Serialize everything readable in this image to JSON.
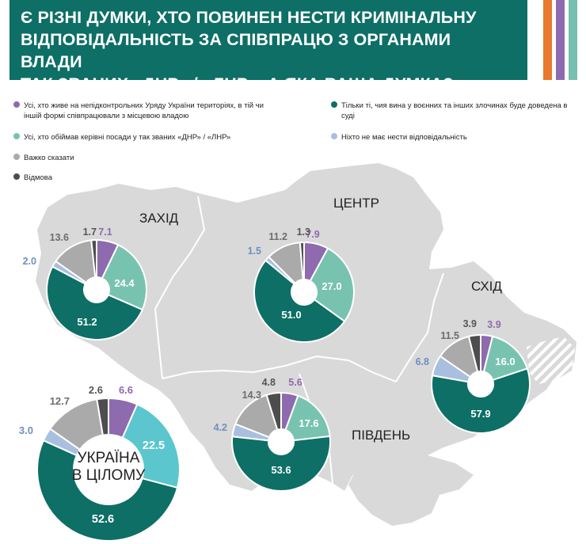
{
  "header": {
    "title_lines": [
      "Є РІЗНІ ДУМКИ, ХТО ПОВИНЕН НЕСТИ КРИМІНАЛЬНУ",
      "ВІДПОВІДАЛЬНІСТЬ ЗА СПІВПРАЦЮ З ОРГАНАМИ ВЛАДИ",
      "ТАК ЗВАНИХ «ДНР» / «ЛНР». А ЯКА ВАША ДУМКА?"
    ],
    "header_color": "#0d6f66",
    "stripe_colors": [
      "#e8792f",
      "#8e6aae",
      "#75c0b0"
    ]
  },
  "legend": [
    {
      "label": "Усі, хто живе на непідконтрольних Уряду України територіях, в тій чи іншій формі співпрацювали з місцевою владою",
      "color": "#8e6aae"
    },
    {
      "label": "Тільки ті, чия вина у воєнних та інших злочинах буде доведена в суді",
      "color": "#0d6f66"
    },
    {
      "label": "Усі, хто обіймав керівні посади у так званих «ДНР» / «ЛНР»",
      "color": "#78c3b0"
    },
    {
      "label": "Ніхто не має нести відповідальність",
      "color": "#a9bfdf"
    },
    {
      "label": "Важко сказати",
      "color": "#aaaaaa"
    },
    {
      "label": "Відмова",
      "color": "#4d4d4d"
    }
  ],
  "chart_data": [
    {
      "type": "pie",
      "region": "ЗАХІД",
      "series": [
        "Усі, хто живе на непідконтрольних Уряду України територіях…",
        "Усі, хто обіймав керівні посади…",
        "Тільки ті, чия вина… доведена в суді",
        "Ніхто не має нести відповідальність",
        "Важко сказати",
        "Відмова"
      ],
      "values": [
        7.1,
        24.4,
        51.2,
        2.0,
        13.6,
        1.7
      ],
      "labels": [
        "7.1",
        "24.4",
        "51.2",
        "2.0",
        "13.6",
        "1.7"
      ]
    },
    {
      "type": "pie",
      "region": "ЦЕНТР",
      "values": [
        7.9,
        27.0,
        51.0,
        1.5,
        11.2,
        1.3
      ],
      "labels": [
        "7.9",
        "27.0",
        "51.0",
        "1.5",
        "11.2",
        "1.3"
      ]
    },
    {
      "type": "pie",
      "region": "СХІД",
      "values": [
        3.9,
        16.0,
        57.9,
        6.8,
        11.5,
        3.9
      ],
      "labels": [
        "3.9",
        "16.0",
        "57.9",
        "6.8",
        "11.5",
        "3.9"
      ]
    },
    {
      "type": "pie",
      "region": "ПІВДЕНЬ",
      "values": [
        5.6,
        17.6,
        53.6,
        4.2,
        14.3,
        4.8
      ],
      "labels": [
        "5.6",
        "17.6",
        "53.6",
        "4.2",
        "14.3",
        "4.8"
      ]
    },
    {
      "type": "pie",
      "region": "УКРАЇНА В ЦІЛОМУ",
      "region_lines": [
        "УКРАЇНА",
        "В ЦІЛОМУ"
      ],
      "values": [
        6.6,
        22.5,
        52.6,
        3.0,
        12.7,
        2.6
      ],
      "labels": [
        "6.6",
        "22.5",
        "52.6",
        "3.0",
        "12.7",
        "2.6"
      ]
    }
  ],
  "slice_colors": [
    "#8e6aae",
    "#78c3b0",
    "#0d6f66",
    "#a9bfdf",
    "#aaaaaa",
    "#4d4d4d"
  ],
  "total_slice_colors": [
    "#8e6aae",
    "#5bc6ce",
    "#0d6f66",
    "#a9bfdf",
    "#aaaaaa",
    "#4d4d4d"
  ],
  "label_colors": [
    "#8e6aae",
    "#ffffff",
    "#ffffff",
    "#6f8fc0",
    "#6d6d6d",
    "#555555"
  ],
  "map_color": "#d9d9d9"
}
